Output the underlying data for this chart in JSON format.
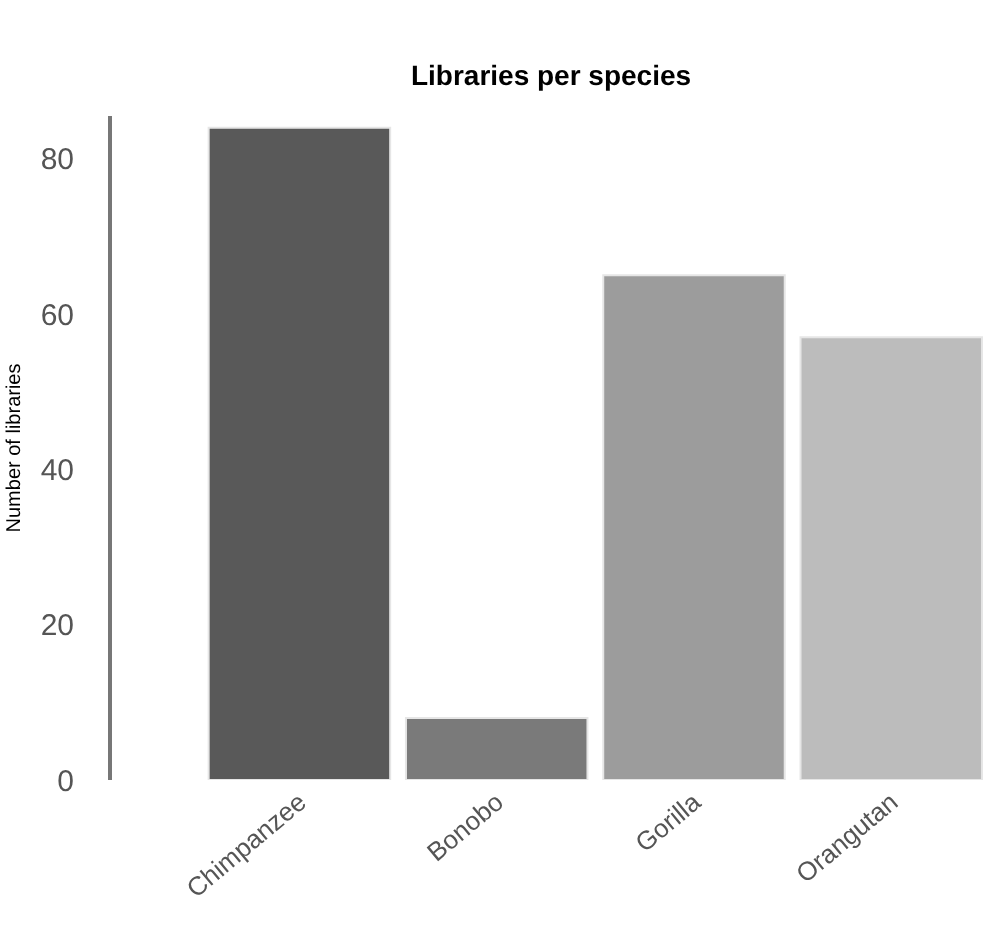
{
  "chart_data": {
    "type": "bar",
    "title": "Libraries per species",
    "ylabel": "Number of libraries",
    "categories": [
      "Chimpanzee",
      "Bonobo",
      "Gorilla",
      "Orangutan"
    ],
    "values": [
      84,
      8,
      65,
      57
    ],
    "colors": [
      "#595959",
      "#7a7a7a",
      "#9c9c9c",
      "#bcbcbc"
    ],
    "ylim": [
      0,
      85.5
    ],
    "yticks": [
      0,
      20,
      40,
      60,
      80
    ],
    "grid": false
  }
}
